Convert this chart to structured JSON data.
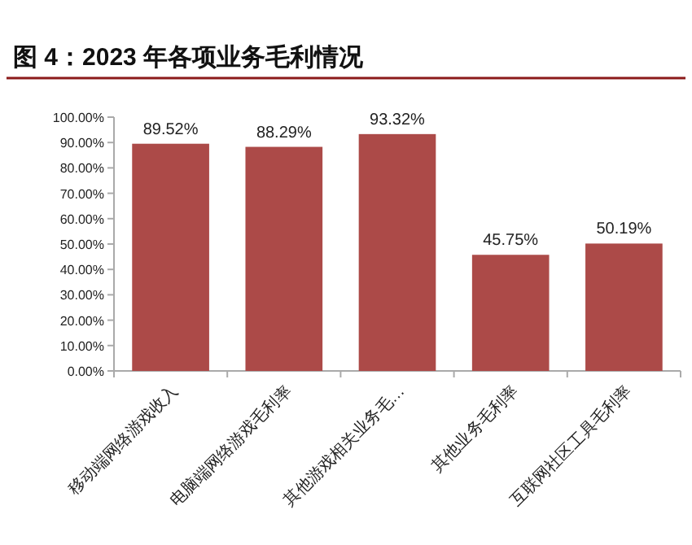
{
  "chart_data": {
    "type": "bar",
    "title": "图 4：2023 年各项业务毛利情况",
    "categories": [
      "移动端网络游戏收入",
      "电脑端网络游戏毛利率",
      "其他游戏相关业务毛…",
      "其他业务毛利率",
      "互联网社区工具毛利率"
    ],
    "series": [
      {
        "color": "#ac4a48",
        "values": [
          89.52,
          88.29,
          93.32,
          45.75,
          50.19
        ],
        "value_labels": [
          "89.52%",
          "88.29%",
          "93.32%",
          "45.75%",
          "50.19%"
        ]
      }
    ],
    "ylim": [
      0,
      100
    ],
    "yticks": [
      {
        "value": 0,
        "label": "0.00%"
      },
      {
        "value": 10,
        "label": "10.00%"
      },
      {
        "value": 20,
        "label": "20.00%"
      },
      {
        "value": 30,
        "label": "30.00%"
      },
      {
        "value": 40,
        "label": "40.00%"
      },
      {
        "value": 50,
        "label": "50.00%"
      },
      {
        "value": 60,
        "label": "60.00%"
      },
      {
        "value": 70,
        "label": "70.00%"
      },
      {
        "value": 80,
        "label": "80.00%"
      },
      {
        "value": 90,
        "label": "90.00%"
      },
      {
        "value": 100,
        "label": "100.00%"
      }
    ]
  }
}
